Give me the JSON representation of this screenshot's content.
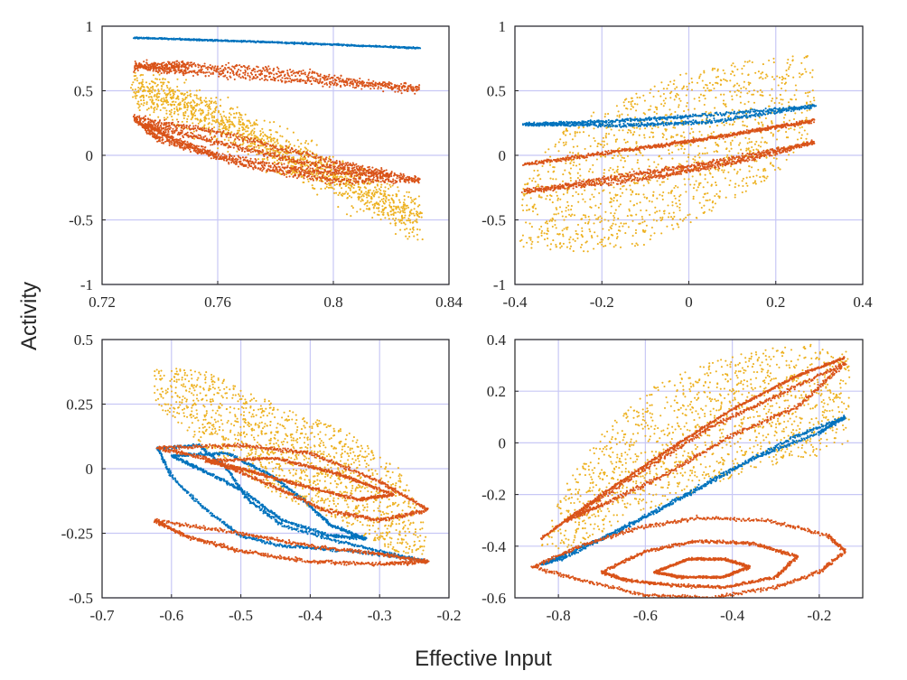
{
  "figure": {
    "xlabel": "Effective Input",
    "ylabel": "Activity"
  },
  "colors": {
    "blue": "#0072BD",
    "orange": "#D95319",
    "yellow": "#EDB120",
    "grid": "#c8c8f5",
    "axis": "#262626"
  },
  "chart_data": [
    {
      "type": "scatter",
      "panel": "top-left",
      "xlim": [
        0.72,
        0.84
      ],
      "ylim": [
        -1,
        1
      ],
      "xticks": [
        "0.72",
        "0.76",
        "0.8",
        "0.84"
      ],
      "yticks": [
        "-1",
        "-0.5",
        "0",
        "0.5",
        "1"
      ],
      "grid": true,
      "series": [
        {
          "color": "yellow",
          "shape": "band",
          "cloud": true,
          "width": 0.28,
          "path": [
            [
              0.731,
              0.52
            ],
            [
              0.75,
              0.38
            ],
            [
              0.77,
              0.16
            ],
            [
              0.79,
              -0.06
            ],
            [
              0.81,
              -0.28
            ],
            [
              0.83,
              -0.5
            ]
          ]
        },
        {
          "color": "orange",
          "shape": "loop",
          "thickness": 0.07,
          "loop": [
            [
              0.731,
              0.69
            ],
            [
              0.75,
              0.7
            ],
            [
              0.79,
              0.63
            ],
            [
              0.83,
              0.51
            ],
            [
              0.79,
              0.58
            ],
            [
              0.75,
              0.65
            ]
          ]
        },
        {
          "color": "orange",
          "shape": "loop",
          "thickness": 0.05,
          "loop": [
            [
              0.731,
              0.29
            ],
            [
              0.76,
              0.18
            ],
            [
              0.8,
              -0.05
            ],
            [
              0.83,
              -0.19
            ],
            [
              0.8,
              -0.2
            ],
            [
              0.77,
              -0.08
            ],
            [
              0.74,
              0.12
            ]
          ]
        },
        {
          "color": "orange",
          "shape": "loop",
          "thickness": 0.05,
          "loop": [
            [
              0.735,
              0.24
            ],
            [
              0.76,
              0.1
            ],
            [
              0.79,
              -0.06
            ],
            [
              0.82,
              -0.16
            ],
            [
              0.79,
              -0.12
            ],
            [
              0.76,
              0.0
            ],
            [
              0.745,
              0.12
            ]
          ]
        },
        {
          "color": "blue",
          "shape": "curve",
          "thickness": 0.012,
          "path": [
            [
              0.731,
              0.91
            ],
            [
              0.78,
              0.875
            ],
            [
              0.83,
              0.83
            ]
          ]
        }
      ]
    },
    {
      "type": "scatter",
      "panel": "top-right",
      "xlim": [
        -0.4,
        0.4
      ],
      "ylim": [
        -1,
        1
      ],
      "xticks": [
        "-0.4",
        "-0.2",
        "0",
        "0.2",
        "0.4"
      ],
      "yticks": [
        "-1",
        "-0.5",
        "0",
        "0.5",
        "1"
      ],
      "grid": true,
      "series": [
        {
          "color": "yellow",
          "shape": "cloud-loop",
          "cloud": true,
          "loop": [
            [
              -0.39,
              -0.72
            ],
            [
              -0.38,
              -0.2
            ],
            [
              -0.3,
              0.2
            ],
            [
              -0.15,
              0.45
            ],
            [
              0.0,
              0.65
            ],
            [
              0.15,
              0.75
            ],
            [
              0.29,
              0.78
            ],
            [
              0.29,
              0.2
            ],
            [
              0.2,
              -0.15
            ],
            [
              0.05,
              -0.45
            ],
            [
              -0.1,
              -0.7
            ],
            [
              -0.25,
              -0.75
            ]
          ]
        },
        {
          "color": "blue",
          "shape": "loop",
          "thickness": 0.03,
          "loop": [
            [
              -0.38,
              0.24
            ],
            [
              -0.2,
              0.26
            ],
            [
              0.0,
              0.3
            ],
            [
              0.29,
              0.38
            ],
            [
              0.05,
              0.26
            ],
            [
              -0.15,
              0.23
            ]
          ]
        },
        {
          "color": "orange",
          "shape": "curve",
          "thickness": 0.03,
          "path": [
            [
              -0.38,
              -0.07
            ],
            [
              -0.1,
              0.06
            ],
            [
              0.1,
              0.16
            ],
            [
              0.29,
              0.27
            ]
          ]
        },
        {
          "color": "orange",
          "shape": "loop",
          "thickness": 0.04,
          "loop": [
            [
              -0.38,
              -0.28
            ],
            [
              -0.15,
              -0.16
            ],
            [
              0.05,
              -0.06
            ],
            [
              0.29,
              0.1
            ],
            [
              0.1,
              -0.06
            ],
            [
              -0.1,
              -0.18
            ]
          ]
        }
      ]
    },
    {
      "type": "scatter",
      "panel": "bottom-left",
      "xlim": [
        -0.7,
        -0.2
      ],
      "ylim": [
        -0.5,
        0.5
      ],
      "xticks": [
        "-0.7",
        "-0.6",
        "-0.5",
        "-0.4",
        "-0.3",
        "-0.2"
      ],
      "yticks": [
        "-0.5",
        "-0.25",
        "0",
        "0.25",
        "0.5"
      ],
      "grid": true,
      "series": [
        {
          "color": "yellow",
          "shape": "cloud-loop",
          "cloud": true,
          "loop": [
            [
              -0.625,
              0.4
            ],
            [
              -0.55,
              0.38
            ],
            [
              -0.45,
              0.25
            ],
            [
              -0.35,
              0.15
            ],
            [
              -0.27,
              0.0
            ],
            [
              -0.23,
              -0.25
            ],
            [
              -0.24,
              -0.35
            ],
            [
              -0.3,
              -0.3
            ],
            [
              -0.36,
              -0.2
            ],
            [
              -0.45,
              -0.1
            ],
            [
              -0.55,
              0.08
            ],
            [
              -0.625,
              0.25
            ]
          ]
        },
        {
          "color": "blue",
          "shape": "loop",
          "thickness": 0.025,
          "loop": [
            [
              -0.62,
              0.08
            ],
            [
              -0.56,
              0.09
            ],
            [
              -0.52,
              0.0
            ],
            [
              -0.49,
              -0.12
            ],
            [
              -0.44,
              -0.22
            ],
            [
              -0.36,
              -0.28
            ],
            [
              -0.3,
              -0.32
            ],
            [
              -0.23,
              -0.36
            ],
            [
              -0.3,
              -0.33
            ],
            [
              -0.38,
              -0.31
            ],
            [
              -0.44,
              -0.3
            ],
            [
              -0.5,
              -0.26
            ],
            [
              -0.55,
              -0.16
            ],
            [
              -0.6,
              -0.03
            ]
          ]
        },
        {
          "color": "blue",
          "shape": "loop",
          "thickness": 0.025,
          "loop": [
            [
              -0.6,
              0.05
            ],
            [
              -0.52,
              0.06
            ],
            [
              -0.46,
              -0.02
            ],
            [
              -0.41,
              -0.12
            ],
            [
              -0.37,
              -0.22
            ],
            [
              -0.32,
              -0.27
            ],
            [
              -0.37,
              -0.26
            ],
            [
              -0.44,
              -0.2
            ],
            [
              -0.5,
              -0.08
            ],
            [
              -0.56,
              0.0
            ]
          ]
        },
        {
          "color": "orange",
          "shape": "loop",
          "thickness": 0.03,
          "loop": [
            [
              -0.62,
              0.08
            ],
            [
              -0.5,
              0.09
            ],
            [
              -0.4,
              0.06
            ],
            [
              -0.3,
              -0.05
            ],
            [
              -0.23,
              -0.16
            ],
            [
              -0.3,
              -0.2
            ],
            [
              -0.38,
              -0.16
            ],
            [
              -0.46,
              -0.06
            ],
            [
              -0.55,
              0.04
            ]
          ]
        },
        {
          "color": "orange",
          "shape": "loop",
          "thickness": 0.025,
          "loop": [
            [
              -0.55,
              0.03
            ],
            [
              -0.45,
              0.04
            ],
            [
              -0.36,
              -0.02
            ],
            [
              -0.28,
              -0.1
            ],
            [
              -0.33,
              -0.12
            ],
            [
              -0.42,
              -0.06
            ],
            [
              -0.5,
              0.0
            ]
          ]
        },
        {
          "color": "orange",
          "shape": "loop",
          "thickness": 0.03,
          "loop": [
            [
              -0.625,
              -0.2
            ],
            [
              -0.5,
              -0.25
            ],
            [
              -0.4,
              -0.3
            ],
            [
              -0.3,
              -0.33
            ],
            [
              -0.23,
              -0.36
            ],
            [
              -0.3,
              -0.37
            ],
            [
              -0.4,
              -0.36
            ],
            [
              -0.5,
              -0.32
            ],
            [
              -0.58,
              -0.26
            ]
          ]
        }
      ]
    },
    {
      "type": "scatter",
      "panel": "bottom-right",
      "xlim": [
        -0.9,
        -0.1
      ],
      "ylim": [
        -0.6,
        0.4
      ],
      "xticks": [
        "-0.8",
        "-0.6",
        "-0.4",
        "-0.2"
      ],
      "yticks": [
        "-0.6",
        "-0.4",
        "-0.2",
        "0",
        "0.2",
        "0.4"
      ],
      "grid": true,
      "series": [
        {
          "color": "yellow",
          "shape": "cloud-loop",
          "cloud": true,
          "loop": [
            [
              -0.84,
              -0.4
            ],
            [
              -0.78,
              -0.15
            ],
            [
              -0.7,
              0.05
            ],
            [
              -0.6,
              0.2
            ],
            [
              -0.48,
              0.3
            ],
            [
              -0.35,
              0.36
            ],
            [
              -0.22,
              0.38
            ],
            [
              -0.13,
              0.35
            ],
            [
              -0.13,
              0.0
            ],
            [
              -0.2,
              -0.05
            ],
            [
              -0.35,
              -0.1
            ],
            [
              -0.5,
              -0.2
            ],
            [
              -0.65,
              -0.3
            ],
            [
              -0.78,
              -0.42
            ]
          ]
        },
        {
          "color": "orange",
          "shape": "curve",
          "thickness": 0.02,
          "path": [
            [
              -0.84,
              -0.37
            ],
            [
              -0.7,
              -0.2
            ],
            [
              -0.55,
              -0.03
            ],
            [
              -0.4,
              0.13
            ],
            [
              -0.25,
              0.26
            ],
            [
              -0.14,
              0.33
            ]
          ]
        },
        {
          "color": "orange",
          "shape": "loop",
          "thickness": 0.035,
          "loop": [
            [
              -0.78,
              -0.3
            ],
            [
              -0.6,
              -0.1
            ],
            [
              -0.45,
              0.06
            ],
            [
              -0.3,
              0.18
            ],
            [
              -0.14,
              0.31
            ],
            [
              -0.25,
              0.14
            ],
            [
              -0.4,
              0.03
            ],
            [
              -0.55,
              -0.12
            ],
            [
              -0.7,
              -0.24
            ]
          ]
        },
        {
          "color": "blue",
          "shape": "loop",
          "thickness": 0.03,
          "loop": [
            [
              -0.84,
              -0.47
            ],
            [
              -0.7,
              -0.37
            ],
            [
              -0.55,
              -0.24
            ],
            [
              -0.4,
              -0.1
            ],
            [
              -0.26,
              0.02
            ],
            [
              -0.14,
              0.1
            ],
            [
              -0.2,
              0.04
            ],
            [
              -0.35,
              -0.06
            ],
            [
              -0.5,
              -0.2
            ],
            [
              -0.65,
              -0.33
            ],
            [
              -0.78,
              -0.44
            ]
          ]
        },
        {
          "color": "orange",
          "shape": "loop",
          "thickness": 0.03,
          "loop": [
            [
              -0.86,
              -0.48
            ],
            [
              -0.75,
              -0.4
            ],
            [
              -0.62,
              -0.33
            ],
            [
              -0.48,
              -0.29
            ],
            [
              -0.32,
              -0.3
            ],
            [
              -0.18,
              -0.36
            ],
            [
              -0.14,
              -0.42
            ],
            [
              -0.2,
              -0.5
            ],
            [
              -0.3,
              -0.56
            ],
            [
              -0.45,
              -0.6
            ],
            [
              -0.6,
              -0.59
            ],
            [
              -0.75,
              -0.53
            ]
          ]
        },
        {
          "color": "orange",
          "shape": "loop",
          "thickness": 0.025,
          "loop": [
            [
              -0.7,
              -0.5
            ],
            [
              -0.6,
              -0.42
            ],
            [
              -0.48,
              -0.38
            ],
            [
              -0.35,
              -0.39
            ],
            [
              -0.25,
              -0.44
            ],
            [
              -0.3,
              -0.52
            ],
            [
              -0.42,
              -0.56
            ],
            [
              -0.55,
              -0.55
            ],
            [
              -0.65,
              -0.53
            ]
          ]
        },
        {
          "color": "orange",
          "shape": "loop",
          "thickness": 0.02,
          "loop": [
            [
              -0.58,
              -0.5
            ],
            [
              -0.5,
              -0.45
            ],
            [
              -0.42,
              -0.45
            ],
            [
              -0.36,
              -0.48
            ],
            [
              -0.42,
              -0.52
            ],
            [
              -0.52,
              -0.52
            ]
          ]
        }
      ]
    }
  ]
}
